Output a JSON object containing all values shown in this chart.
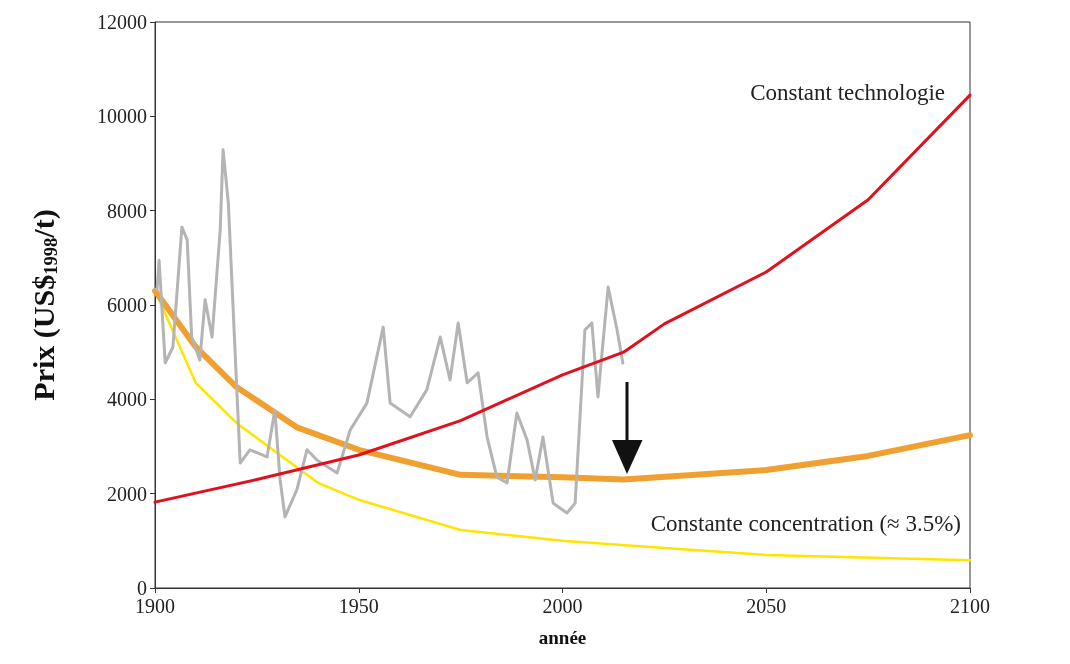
{
  "chart_data": {
    "type": "line",
    "xlabel": "année",
    "ylabel": "Prix (US$$_{1998}$/t)",
    "xlim": [
      1900,
      2100
    ],
    "xticks": [
      1900,
      1950,
      2000,
      2050,
      2100
    ],
    "ylim": [
      0,
      12000
    ],
    "yticks": [
      0,
      2000,
      4000,
      6000,
      8000,
      10000,
      12000
    ],
    "grid": false,
    "marker": "none",
    "series": [
      {
        "color": "#b4b4b4",
        "x": [
          1900.5,
          1901,
          1902.5,
          1904.4,
          1906.6,
          1907.9,
          1909,
          1911,
          1912.3,
          1914,
          1916,
          1916.7,
          1918,
          1919.6,
          1920.9,
          1923.3,
          1927.5,
          1929.4,
          1930.7,
          1931.9,
          1934.8,
          1937.3,
          1939.8,
          1944.7,
          1947.9,
          1952,
          1956,
          1957.7,
          1962.6,
          1966.7,
          1970,
          1972.4,
          1974.4,
          1976.6,
          1979.3,
          1981.5,
          1983.9,
          1986.4,
          1988.8,
          1991.3,
          1993.3,
          1995.2,
          1997.7,
          2001.1,
          2003.1,
          2005.5,
          2007.2,
          2008.7,
          2011.2,
          2013.4,
          2014.8
        ],
        "values": [
          6320,
          6950,
          4770,
          5110,
          7650,
          7380,
          5320,
          4830,
          6110,
          5320,
          7590,
          9290,
          8160,
          5110,
          2650,
          2930,
          2780,
          3770,
          2290,
          1510,
          2080,
          2930,
          2710,
          2440,
          3350,
          3920,
          5530,
          3920,
          3630,
          4200,
          5320,
          4410,
          5620,
          4350,
          4560,
          3200,
          2350,
          2230,
          3710,
          3140,
          2290,
          3200,
          1800,
          1590,
          1800,
          5470,
          5620,
          4050,
          6380,
          5470,
          4770
        ]
      },
      {
        "name": "Constant technologie",
        "color": "#e0101e",
        "x": [
          1900,
          1925,
          1950,
          1975,
          2000,
          2015,
          2025,
          2050,
          2075,
          2100
        ],
        "values": [
          1820,
          2300,
          2820,
          3550,
          4520,
          5000,
          5600,
          6700,
          8230,
          10450
        ]
      },
      {
        "color": "#ffe400",
        "x": [
          1900,
          1910,
          1920,
          1930,
          1940,
          1950,
          1975,
          2000,
          2025,
          2050,
          2100
        ],
        "values": [
          6300,
          4350,
          3500,
          2860,
          2230,
          1870,
          1230,
          1000,
          850,
          700,
          590
        ]
      },
      {
        "name": "Constante concentration (≈ 3.5%)",
        "color": "#f0a030",
        "x": [
          1900,
          1910,
          1920,
          1935,
          1950,
          1975,
          2000,
          2015,
          2050,
          2075,
          2100
        ],
        "values": [
          6300,
          5110,
          4260,
          3400,
          2930,
          2400,
          2350,
          2300,
          2500,
          2800,
          3240
        ]
      }
    ]
  }
}
